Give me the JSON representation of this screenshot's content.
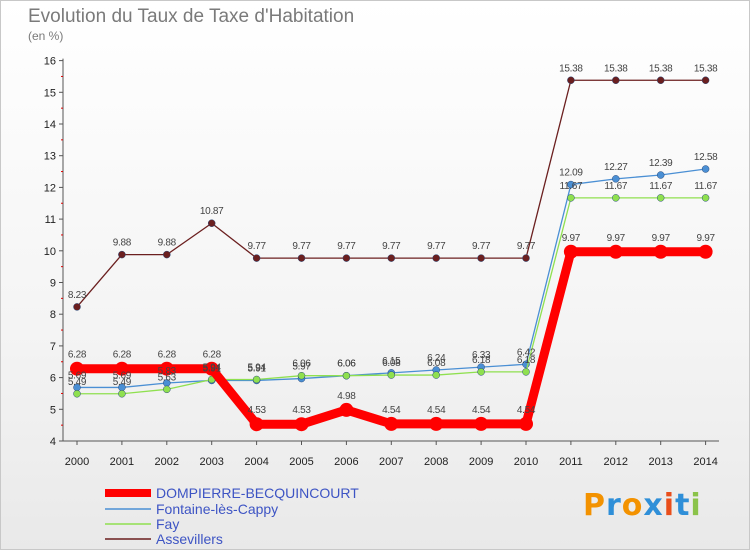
{
  "title": "Evolution du Taux de Taxe d'Habitation",
  "unit": "(en %)",
  "logo": "Proxiti",
  "colors": {
    "dompierre": "#ff0000",
    "fontaine": "#4a8fd4",
    "fay": "#8fe04f",
    "assevillers": "#6b1f1f"
  },
  "chart_data": {
    "type": "line",
    "x": [
      "2000",
      "2001",
      "2002",
      "2003",
      "2004",
      "2005",
      "2006",
      "2007",
      "2008",
      "2009",
      "2010",
      "2011",
      "2012",
      "2013",
      "2014"
    ],
    "ylim": [
      4,
      16
    ],
    "yticks": [
      4,
      5,
      6,
      7,
      8,
      9,
      10,
      11,
      12,
      13,
      14,
      15,
      16
    ],
    "grid": false,
    "legend": "bottom-left",
    "series": [
      {
        "name": "DOMPIERRE-BECQUINCOURT",
        "color": "#ff0000",
        "values": [
          6.28,
          6.28,
          6.28,
          6.28,
          4.53,
          4.53,
          4.98,
          4.54,
          4.54,
          4.54,
          4.54,
          9.97,
          9.97,
          9.97,
          9.97
        ],
        "labels": [
          "6.28",
          "6.28",
          "6.28",
          "6.28",
          "4.53",
          "4.53",
          "4.98",
          "4.54",
          "4.54",
          "4.54",
          "4.54",
          "9.97",
          "9.97",
          "9.97",
          "9.97"
        ]
      },
      {
        "name": "Fontaine-lès-Cappy",
        "color": "#4a8fd4",
        "values": [
          5.69,
          5.69,
          5.83,
          5.91,
          5.91,
          5.97,
          6.06,
          6.15,
          6.24,
          6.33,
          6.42,
          12.09,
          12.27,
          12.39,
          12.58
        ],
        "labels": [
          "5.69",
          "5.69",
          "5.83",
          "5.91",
          "5.91",
          "5.97",
          "6.06",
          "6.15",
          "6.24",
          "6.33",
          "6.42",
          "12.09",
          "12.27",
          "12.39",
          "12.58"
        ]
      },
      {
        "name": "Fay",
        "color": "#8fe04f",
        "values": [
          5.49,
          5.49,
          5.63,
          5.94,
          5.94,
          6.06,
          6.06,
          6.08,
          6.08,
          6.18,
          6.18,
          11.67,
          11.67,
          11.67,
          11.67
        ],
        "labels": [
          "5.49",
          "5.49",
          "5.63",
          "5.94",
          "5.94",
          "6.06",
          "6.06",
          "6.08",
          "6.08",
          "6.18",
          "6.18",
          "11.67",
          "11.67",
          "11.67",
          "11.67"
        ]
      },
      {
        "name": "Assevillers",
        "color": "#6b1f1f",
        "values": [
          8.23,
          9.88,
          9.88,
          10.87,
          9.77,
          9.77,
          9.77,
          9.77,
          9.77,
          9.77,
          9.77,
          15.38,
          15.38,
          15.38,
          15.38
        ],
        "labels": [
          "8.23",
          "9.88",
          "9.88",
          "10.87",
          "9.77",
          "9.77",
          "9.77",
          "9.77",
          "9.77",
          "9.77",
          "9.77",
          "15.38",
          "15.38",
          "15.38",
          "15.38"
        ]
      }
    ]
  }
}
